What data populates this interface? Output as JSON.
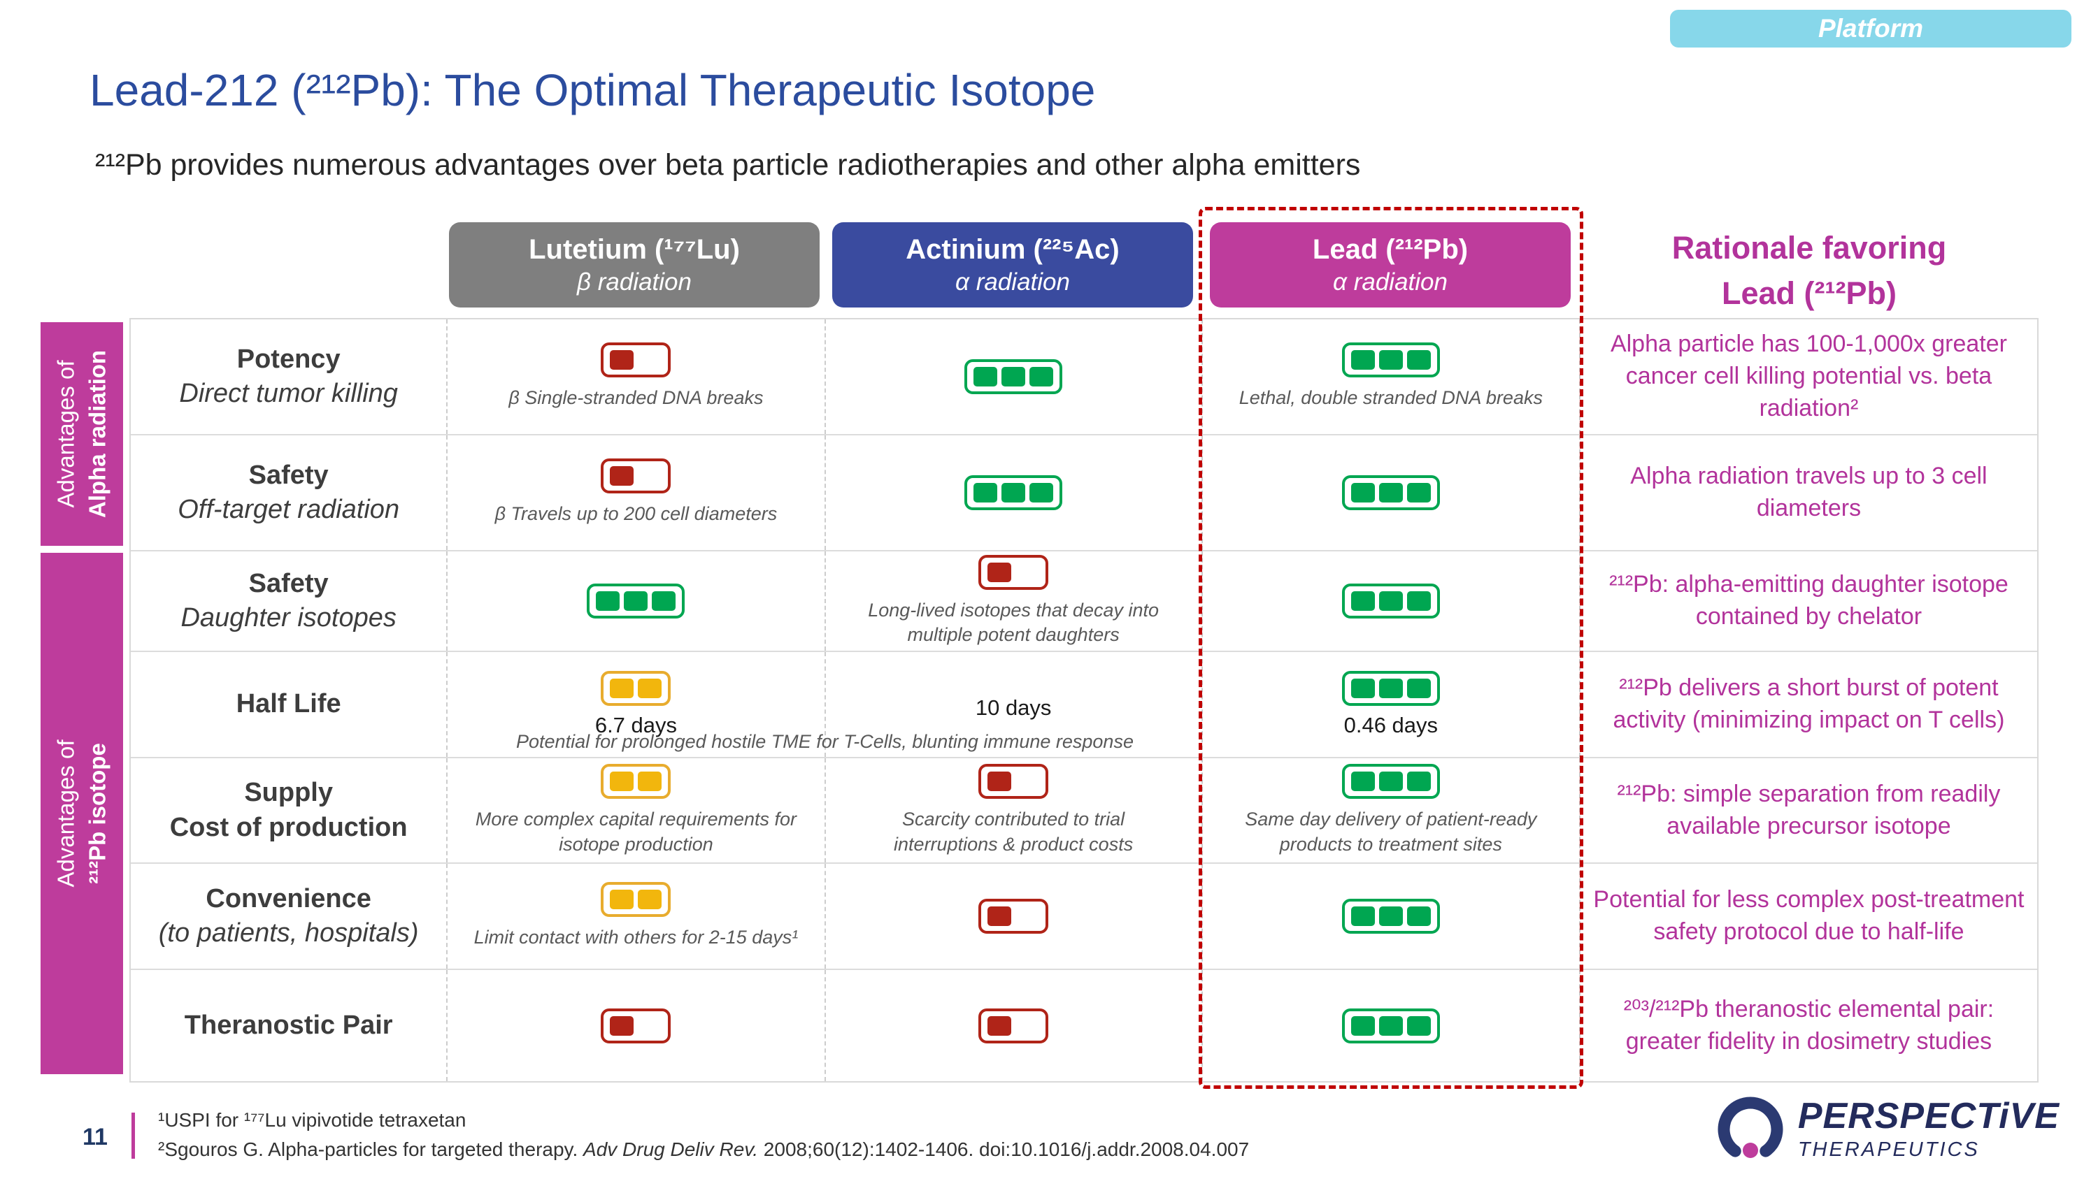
{
  "colors": {
    "accent_magenta": "#BE3C9C",
    "rationale_magenta": "#B2339B",
    "title_blue": "#2B4C9E",
    "header_gray": "#7F7F7F",
    "header_indigo": "#3A4B9F",
    "badge_cyan": "#87D7EA",
    "dashed_red": "#C00000",
    "score_green": "#00A651",
    "score_yellow": "#F2B60D",
    "score_red": "#B02418"
  },
  "badge": {
    "label": "Platform"
  },
  "header": {
    "title": "Lead-212 (²¹²Pb): The Optimal Therapeutic Isotope",
    "subtitle": "²¹²Pb provides numerous advantages over beta particle radiotherapies and other alpha emitters"
  },
  "columns": {
    "lutetium": {
      "name": "Lutetium (¹⁷⁷Lu)",
      "radiation": "β radiation"
    },
    "actinium": {
      "name": "Actinium (²²⁵Ac)",
      "radiation": "α radiation"
    },
    "lead": {
      "name": "Lead (²¹²Pb)",
      "radiation": "α radiation"
    },
    "rationale": {
      "line1": "Rationale favoring",
      "line2": "Lead (²¹²Pb)"
    }
  },
  "groups": [
    {
      "line1": "Advantages of",
      "line2": "Alpha radiation"
    },
    {
      "line1": "Advantages of",
      "line2": "²¹²Pb isotope"
    }
  ],
  "rows": [
    {
      "label": "Potency",
      "sublabel": "Direct tumor killing",
      "cells": {
        "lu": {
          "score": {
            "color": "red",
            "slots": 2,
            "filled": 1
          },
          "caption": "β  Single-stranded DNA breaks"
        },
        "ac": {
          "score": {
            "color": "green",
            "slots": 3,
            "filled": 3
          }
        },
        "pb": {
          "score": {
            "color": "green",
            "slots": 3,
            "filled": 3
          },
          "caption": "Lethal, double stranded DNA breaks"
        }
      },
      "rationale": "Alpha particle has 100-1,000x greater cancer cell killing potential vs. beta radiation²"
    },
    {
      "label": "Safety",
      "sublabel": "Off-target radiation",
      "cells": {
        "lu": {
          "score": {
            "color": "red",
            "slots": 2,
            "filled": 1
          },
          "caption": "β  Travels up to 200 cell diameters"
        },
        "ac": {
          "score": {
            "color": "green",
            "slots": 3,
            "filled": 3
          }
        },
        "pb": {
          "score": {
            "color": "green",
            "slots": 3,
            "filled": 3
          }
        }
      },
      "rationale": "Alpha radiation travels up to 3 cell diameters"
    },
    {
      "label": "Safety",
      "sublabel": "Daughter isotopes",
      "cells": {
        "lu": {
          "score": {
            "color": "green",
            "slots": 3,
            "filled": 3
          }
        },
        "ac": {
          "score": {
            "color": "red",
            "slots": 2,
            "filled": 1
          },
          "caption": "Long-lived isotopes that decay into multiple potent daughters"
        },
        "pb": {
          "score": {
            "color": "green",
            "slots": 3,
            "filled": 3
          }
        }
      },
      "rationale": "²¹²Pb: alpha-emitting daughter isotope contained by chelator"
    },
    {
      "label": "Half Life",
      "sublabel": "",
      "cells": {
        "lu": {
          "score": {
            "color": "yellow",
            "slots": 2,
            "filled": 2
          },
          "value": "6.7 days"
        },
        "ac": {
          "value": "10 days"
        },
        "pb": {
          "score": {
            "color": "green",
            "slots": 3,
            "filled": 3
          },
          "value": "0.46 days"
        }
      },
      "span_caption": "Potential for prolonged hostile TME for T-Cells, blunting immune response",
      "rationale": "²¹²Pb delivers a short burst of potent activity (minimizing impact on T cells)"
    },
    {
      "label": "Supply",
      "sublabel": "Cost of production",
      "cells": {
        "lu": {
          "score": {
            "color": "yellow",
            "slots": 2,
            "filled": 2
          },
          "caption": "More complex capital requirements for isotope production"
        },
        "ac": {
          "score": {
            "color": "red",
            "slots": 2,
            "filled": 1
          },
          "caption": "Scarcity contributed to trial interruptions & product costs"
        },
        "pb": {
          "score": {
            "color": "green",
            "slots": 3,
            "filled": 3
          },
          "caption": "Same day delivery of patient-ready products to treatment sites"
        }
      },
      "rationale": "²¹²Pb: simple separation from readily available precursor isotope"
    },
    {
      "label": "Convenience",
      "sublabel": "(to patients, hospitals)",
      "cells": {
        "lu": {
          "score": {
            "color": "yellow",
            "slots": 2,
            "filled": 2
          },
          "caption": "Limit contact with others for 2-15 days¹"
        },
        "ac": {
          "score": {
            "color": "red",
            "slots": 2,
            "filled": 1
          }
        },
        "pb": {
          "score": {
            "color": "green",
            "slots": 3,
            "filled": 3
          }
        }
      },
      "rationale": "Potential for less complex post-treatment safety protocol due to half-life"
    },
    {
      "label": "Theranostic Pair",
      "sublabel": "",
      "cells": {
        "lu": {
          "score": {
            "color": "red",
            "slots": 2,
            "filled": 1
          }
        },
        "ac": {
          "score": {
            "color": "red",
            "slots": 2,
            "filled": 1
          }
        },
        "pb": {
          "score": {
            "color": "green",
            "slots": 3,
            "filled": 3
          }
        }
      },
      "rationale": "²⁰³/²¹²Pb theranostic elemental pair: greater fidelity in dosimetry studies"
    }
  ],
  "footnotes": {
    "line1": "¹USPI for ¹⁷⁷Lu vipivotide tetraxetan",
    "line2_prefix": "²Sgouros G. Alpha-particles for targeted therapy. ",
    "line2_journal": "Adv Drug Deliv Rev.",
    "line2_suffix": " 2008;60(12):1402-1406. doi:10.1016/j.addr.2008.04.007"
  },
  "page_number": "11",
  "logo": {
    "name": "PERSPECTiVE",
    "sub": "THERAPEUTICS"
  }
}
